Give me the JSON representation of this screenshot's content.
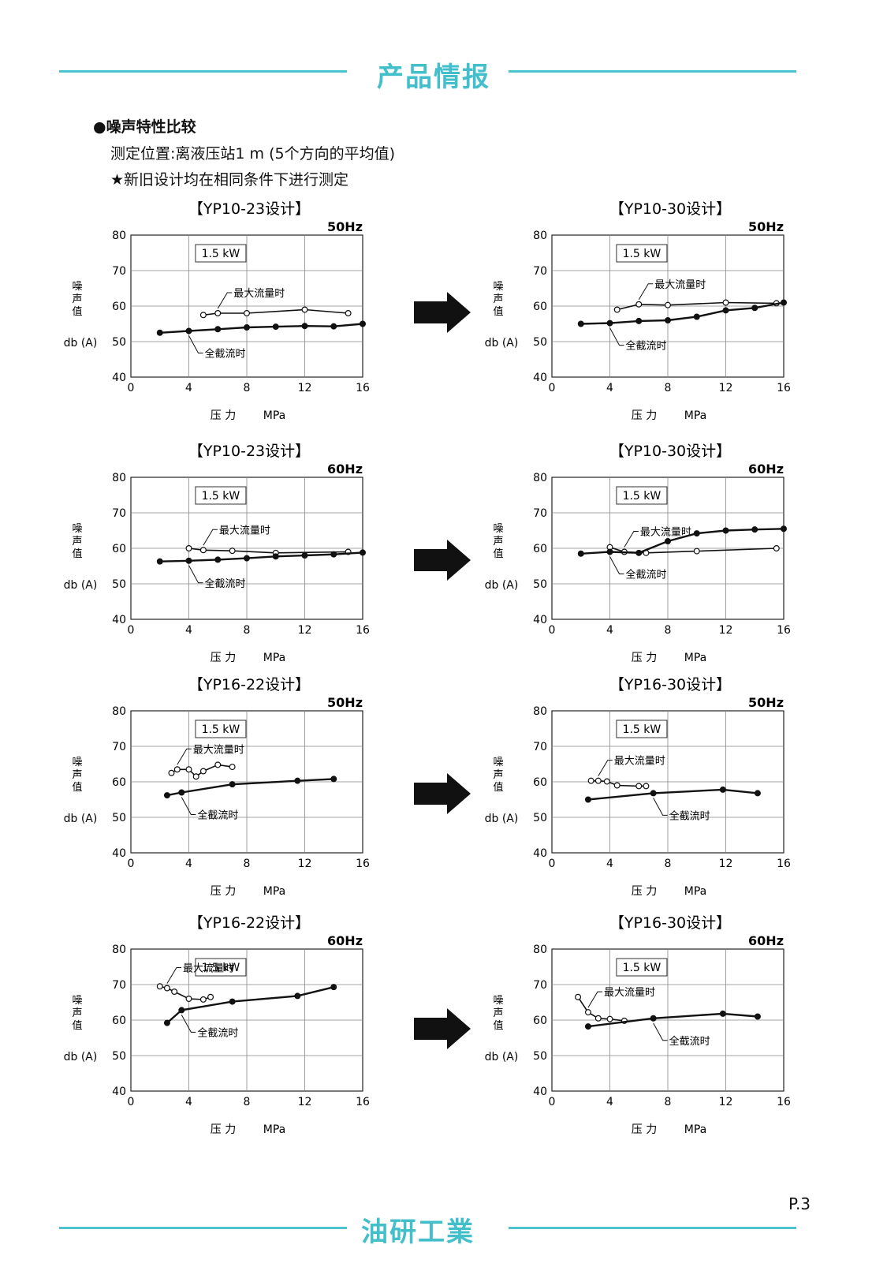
{
  "header": {
    "title": "产品情报"
  },
  "footer": {
    "brand": "油研工業",
    "page": "P.3"
  },
  "intro": {
    "heading": "●噪声特性比较",
    "line1": "测定位置:离液压站1 m (5个方向的平均值)",
    "line2": "★新旧设计均在相同条件下进行测定"
  },
  "colors": {
    "accent": "#43bfcc",
    "arrow": "#111111"
  },
  "chart_data": [
    {
      "id": "yp10-23-50",
      "type": "line",
      "title": "【YP10-23设计】",
      "frequency": "50Hz",
      "power_label": "1.5 kW",
      "ylabel": "噪\n声\n值",
      "yunit": "db (A)",
      "xlabel": "压 力",
      "xunit": "MPa",
      "xlim": [
        0,
        16
      ],
      "ylim": [
        40,
        80
      ],
      "xticks": [
        0,
        4,
        8,
        12,
        16
      ],
      "yticks": [
        40,
        50,
        60,
        70,
        80
      ],
      "grid": true,
      "series": [
        {
          "name": "最大流量时",
          "marker": "open",
          "x": [
            5,
            6,
            8,
            12,
            15
          ],
          "y": [
            57.5,
            58,
            58,
            59,
            58
          ]
        },
        {
          "name": "全截流时",
          "marker": "filled",
          "x": [
            2,
            4,
            6,
            8,
            10,
            12,
            14,
            16
          ],
          "y": [
            52.5,
            53,
            53.5,
            54,
            54.2,
            54.4,
            54.3,
            55
          ]
        }
      ]
    },
    {
      "id": "yp10-30-50",
      "type": "line",
      "title": "【YP10-30设计】",
      "frequency": "50Hz",
      "power_label": "1.5 kW",
      "ylabel": "噪\n声\n值",
      "yunit": "db (A)",
      "xlabel": "压 力",
      "xunit": "MPa",
      "xlim": [
        0,
        16
      ],
      "ylim": [
        40,
        80
      ],
      "xticks": [
        0,
        4,
        8,
        12,
        16
      ],
      "yticks": [
        40,
        50,
        60,
        70,
        80
      ],
      "grid": true,
      "series": [
        {
          "name": "最大流量时",
          "marker": "open",
          "x": [
            4.5,
            6,
            8,
            12,
            15.5
          ],
          "y": [
            59,
            60.5,
            60.3,
            61,
            60.8
          ]
        },
        {
          "name": "全截流时",
          "marker": "filled",
          "x": [
            2,
            4,
            6,
            8,
            10,
            12,
            14,
            16
          ],
          "y": [
            55,
            55.2,
            55.8,
            56,
            57,
            58.8,
            59.5,
            61
          ]
        }
      ]
    },
    {
      "id": "yp10-23-60",
      "type": "line",
      "title": "【YP10-23设计】",
      "frequency": "60Hz",
      "power_label": "1.5 kW",
      "ylabel": "噪\n声\n值",
      "yunit": "db (A)",
      "xlabel": "压 力",
      "xunit": "MPa",
      "xlim": [
        0,
        16
      ],
      "ylim": [
        40,
        80
      ],
      "xticks": [
        0,
        4,
        8,
        12,
        16
      ],
      "yticks": [
        40,
        50,
        60,
        70,
        80
      ],
      "grid": true,
      "series": [
        {
          "name": "最大流量时",
          "marker": "open",
          "x": [
            4,
            5,
            7,
            10,
            15
          ],
          "y": [
            60,
            59.5,
            59.3,
            58.7,
            59
          ]
        },
        {
          "name": "全截流时",
          "marker": "filled",
          "x": [
            2,
            4,
            6,
            8,
            10,
            12,
            14,
            16
          ],
          "y": [
            56.3,
            56.5,
            56.8,
            57.2,
            57.7,
            58,
            58.3,
            58.8
          ]
        }
      ]
    },
    {
      "id": "yp10-30-60",
      "type": "line",
      "title": "【YP10-30设计】",
      "frequency": "60Hz",
      "power_label": "1.5 kW",
      "ylabel": "噪\n声\n值",
      "yunit": "db (A)",
      "xlabel": "压 力",
      "xunit": "MPa",
      "xlim": [
        0,
        16
      ],
      "ylim": [
        40,
        80
      ],
      "xticks": [
        0,
        4,
        8,
        12,
        16
      ],
      "yticks": [
        40,
        50,
        60,
        70,
        80
      ],
      "grid": true,
      "series": [
        {
          "name": "最大流量时",
          "marker": "open",
          "x": [
            4,
            5,
            6.5,
            10,
            15.5
          ],
          "y": [
            60.3,
            59,
            58.7,
            59.2,
            60
          ]
        },
        {
          "name": "全截流时",
          "marker": "filled",
          "x": [
            2,
            4,
            6,
            8,
            10,
            12,
            14,
            16
          ],
          "y": [
            58.5,
            59,
            58.7,
            62,
            64.2,
            65,
            65.3,
            65.5
          ]
        }
      ]
    },
    {
      "id": "yp16-22-50",
      "type": "line",
      "title": "【YP16-22设计】",
      "frequency": "50Hz",
      "power_label": "1.5 kW",
      "ylabel": "噪\n声\n值",
      "yunit": "db (A)",
      "xlabel": "压 力",
      "xunit": "MPa",
      "xlim": [
        0,
        16
      ],
      "ylim": [
        40,
        80
      ],
      "xticks": [
        0,
        4,
        8,
        12,
        16
      ],
      "yticks": [
        40,
        50,
        60,
        70,
        80
      ],
      "grid": true,
      "series": [
        {
          "name": "最大流量时",
          "marker": "open",
          "x": [
            2.8,
            3.2,
            4,
            4.5,
            5,
            6,
            7
          ],
          "y": [
            62.5,
            63.5,
            63.5,
            61.5,
            63,
            64.8,
            64.2
          ]
        },
        {
          "name": "全截流时",
          "marker": "filled",
          "x": [
            2.5,
            3.5,
            7,
            11.5,
            14
          ],
          "y": [
            56.2,
            57,
            59.3,
            60.3,
            60.8
          ]
        }
      ]
    },
    {
      "id": "yp16-30-50",
      "type": "line",
      "title": "【YP16-30设计】",
      "frequency": "50Hz",
      "power_label": "1.5 kW",
      "ylabel": "噪\n声\n值",
      "yunit": "db (A)",
      "xlabel": "压 力",
      "xunit": "MPa",
      "xlim": [
        0,
        16
      ],
      "ylim": [
        40,
        80
      ],
      "xticks": [
        0,
        4,
        8,
        12,
        16
      ],
      "yticks": [
        40,
        50,
        60,
        70,
        80
      ],
      "grid": true,
      "series": [
        {
          "name": "最大流量时",
          "marker": "open",
          "x": [
            2.7,
            3.2,
            3.8,
            4.5,
            6,
            6.5
          ],
          "y": [
            60.3,
            60.3,
            60.1,
            59,
            58.8,
            58.8
          ]
        },
        {
          "name": "全截流时",
          "marker": "filled",
          "x": [
            2.5,
            7,
            11.8,
            14.2
          ],
          "y": [
            55,
            56.8,
            57.8,
            56.8
          ]
        }
      ]
    },
    {
      "id": "yp16-22-60",
      "type": "line",
      "title": "【YP16-22设计】",
      "frequency": "60Hz",
      "power_label": "1.5 kW",
      "ylabel": "噪\n声\n值",
      "yunit": "db (A)",
      "xlabel": "压 力",
      "xunit": "MPa",
      "xlim": [
        0,
        16
      ],
      "ylim": [
        40,
        80
      ],
      "xticks": [
        0,
        4,
        8,
        12,
        16
      ],
      "yticks": [
        40,
        50,
        60,
        70,
        80
      ],
      "grid": true,
      "series": [
        {
          "name": "最大流量时",
          "marker": "open",
          "x": [
            2,
            2.5,
            3,
            4,
            5,
            5.5
          ],
          "y": [
            69.5,
            69,
            68,
            66,
            65.8,
            66.5
          ]
        },
        {
          "name": "全截流时",
          "marker": "filled",
          "x": [
            2.5,
            3.5,
            7,
            11.5,
            14
          ],
          "y": [
            59.2,
            62.8,
            65.2,
            66.8,
            69.3
          ]
        }
      ]
    },
    {
      "id": "yp16-30-60",
      "type": "line",
      "title": "【YP16-30设计】",
      "frequency": "60Hz",
      "power_label": "1.5 kW",
      "ylabel": "噪\n声\n值",
      "yunit": "db (A)",
      "xlabel": "压 力",
      "xunit": "MPa",
      "xlim": [
        0,
        16
      ],
      "ylim": [
        40,
        80
      ],
      "xticks": [
        0,
        4,
        8,
        12,
        16
      ],
      "yticks": [
        40,
        50,
        60,
        70,
        80
      ],
      "grid": true,
      "series": [
        {
          "name": "最大流量时",
          "marker": "open",
          "x": [
            1.8,
            2.5,
            3.2,
            4,
            5
          ],
          "y": [
            66.5,
            62.2,
            60.5,
            60.3,
            59.8
          ]
        },
        {
          "name": "全截流时",
          "marker": "filled",
          "x": [
            2.5,
            7,
            11.8,
            14.2
          ],
          "y": [
            58.2,
            60.5,
            61.8,
            61
          ]
        }
      ]
    }
  ]
}
